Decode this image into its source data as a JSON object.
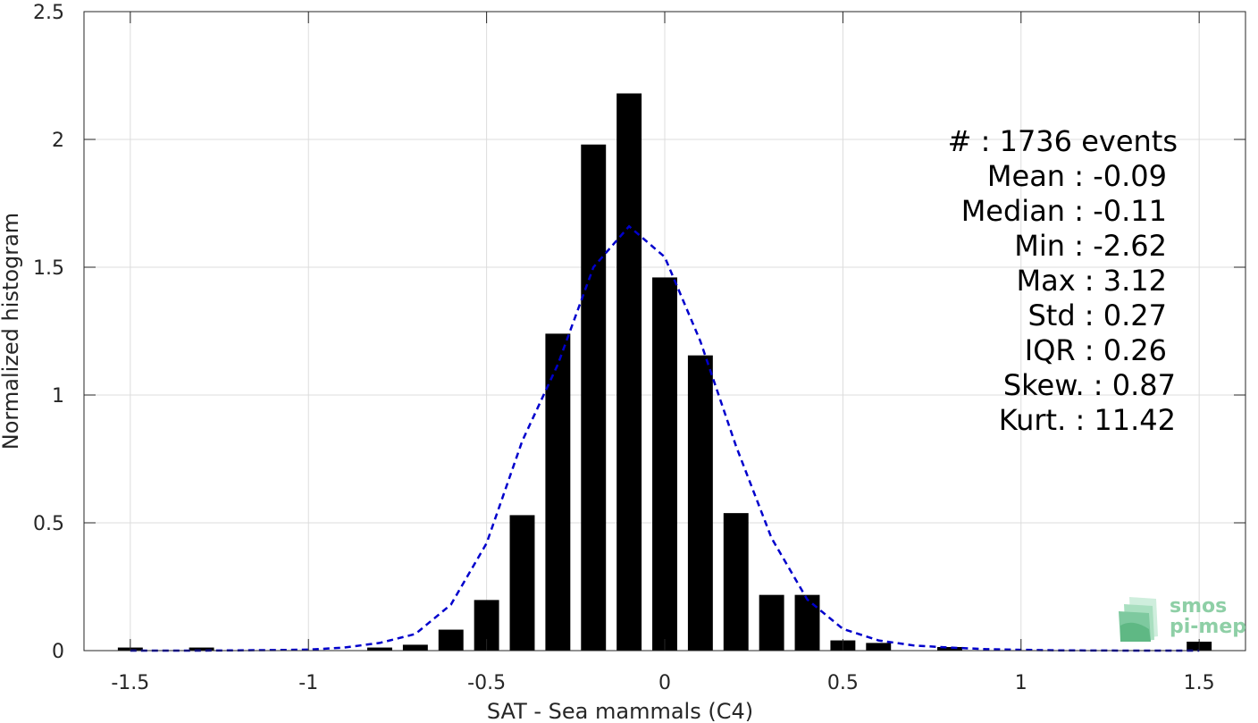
{
  "chart_data": {
    "type": "bar",
    "xlabel": "SAT - Sea mammals (C4)",
    "ylabel": "Normalized histogram",
    "xlim": [
      -1.63,
      1.63
    ],
    "ylim": [
      0,
      2.5
    ],
    "grid": true,
    "x_ticks": [
      -1.5,
      -1,
      -0.5,
      0,
      0.5,
      1,
      1.5
    ],
    "x_tick_labels": [
      "-1.5",
      "-1",
      "-0.5",
      "0",
      "0.5",
      "1",
      "1.5"
    ],
    "y_ticks": [
      0,
      0.5,
      1,
      1.5,
      2,
      2.5
    ],
    "y_tick_labels": [
      "0",
      "0.5",
      "1",
      "1.5",
      "2",
      "2.5"
    ],
    "bar_width": 0.07,
    "bars": [
      {
        "x": -1.5,
        "y": 0.012
      },
      {
        "x": -1.3,
        "y": 0.012
      },
      {
        "x": -0.8,
        "y": 0.012
      },
      {
        "x": -0.7,
        "y": 0.023
      },
      {
        "x": -0.6,
        "y": 0.082
      },
      {
        "x": -0.5,
        "y": 0.198
      },
      {
        "x": -0.4,
        "y": 0.53
      },
      {
        "x": -0.3,
        "y": 1.24
      },
      {
        "x": -0.2,
        "y": 1.98
      },
      {
        "x": -0.1,
        "y": 2.18
      },
      {
        "x": 0.0,
        "y": 1.46
      },
      {
        "x": 0.1,
        "y": 1.155
      },
      {
        "x": 0.2,
        "y": 0.538
      },
      {
        "x": 0.3,
        "y": 0.218
      },
      {
        "x": 0.4,
        "y": 0.218
      },
      {
        "x": 0.5,
        "y": 0.04
      },
      {
        "x": 0.6,
        "y": 0.03
      },
      {
        "x": 0.8,
        "y": 0.014
      },
      {
        "x": 1.5,
        "y": 0.035
      }
    ],
    "fit_curve": {
      "style": "dashed",
      "color": "#0000cc",
      "x": [
        -1.5,
        -1.3,
        -1.1,
        -1.0,
        -0.9,
        -0.8,
        -0.7,
        -0.6,
        -0.5,
        -0.4,
        -0.3,
        -0.2,
        -0.1,
        0.0,
        0.1,
        0.2,
        0.3,
        0.4,
        0.5,
        0.6,
        0.7,
        0.8,
        0.9,
        1.0,
        1.1,
        1.3,
        1.5
      ],
      "y": [
        0.0,
        0.0,
        0.002,
        0.004,
        0.012,
        0.03,
        0.065,
        0.18,
        0.42,
        0.82,
        1.12,
        1.5,
        1.66,
        1.54,
        1.21,
        0.8,
        0.44,
        0.2,
        0.085,
        0.04,
        0.02,
        0.012,
        0.006,
        0.003,
        0.001,
        0.0,
        0.0
      ]
    },
    "annotations": [
      "#  : 1736 events",
      "Mean : -0.09",
      "Median : -0.11",
      "Min : -2.62",
      "Max : 3.12",
      "Std : 0.27",
      "IQR : 0.26",
      "Skew. : 0.87",
      "Kurt. : 11.42"
    ]
  },
  "logo": {
    "line1": "smos",
    "line2": "pi-mep"
  },
  "colors": {
    "bar": "#000000",
    "grid": "#dcdcdc",
    "axis": "#262626",
    "fit": "#0000cc",
    "logo": "#8ecfa6"
  }
}
